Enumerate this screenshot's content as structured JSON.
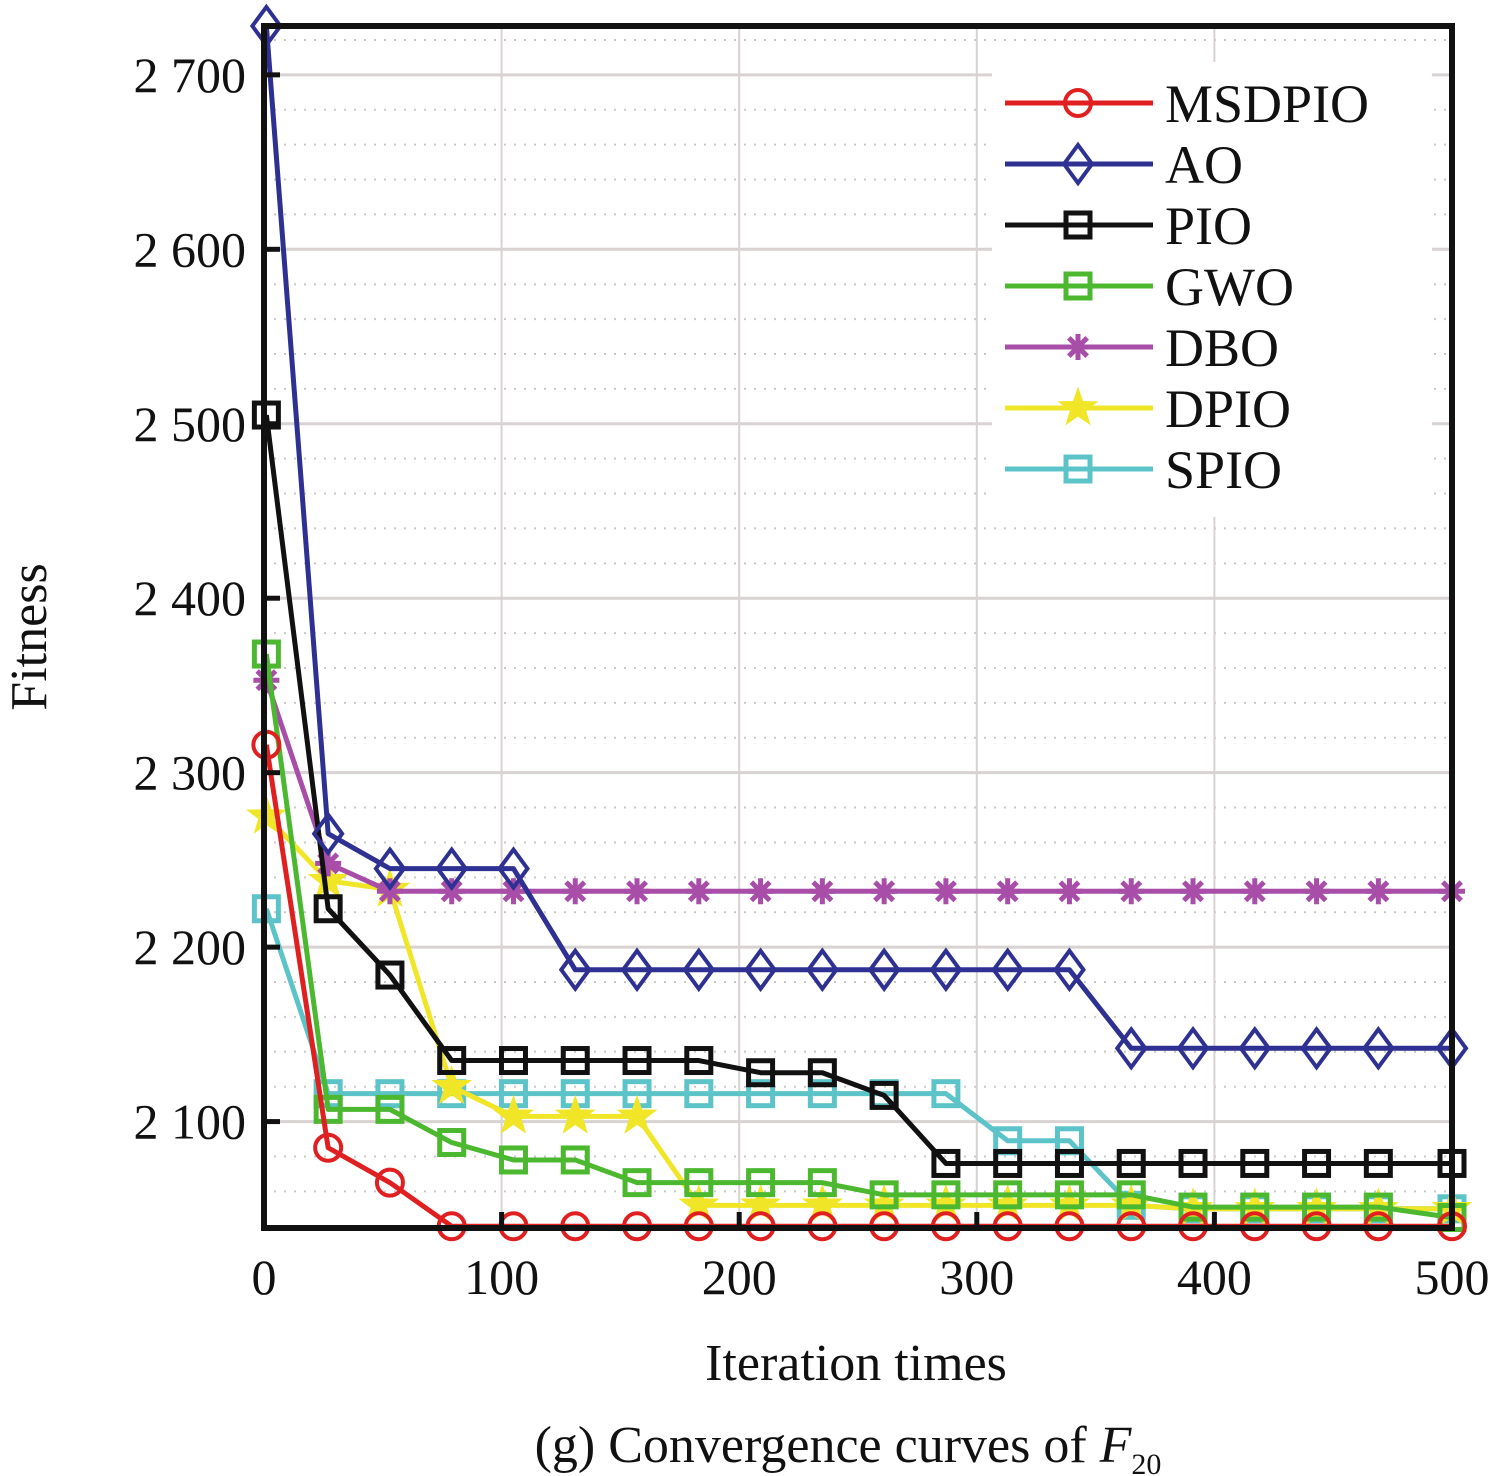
{
  "chart_data": {
    "type": "line",
    "title": "",
    "caption": {
      "prefix": "(g) Convergence curves of ",
      "italic": "F",
      "subscript": "20"
    },
    "xlabel": "Iteration times",
    "ylabel": "Fitness",
    "xlim": [
      0,
      500
    ],
    "ylim": [
      2039,
      2728
    ],
    "xticks": [
      0,
      100,
      200,
      300,
      400,
      500
    ],
    "xtick_labels": [
      "0",
      "100",
      "200",
      "300",
      "400",
      "500"
    ],
    "yticks": [
      2100,
      2200,
      2300,
      2400,
      2500,
      2600,
      2700
    ],
    "ytick_labels": [
      "2 100",
      "2 200",
      "2 300",
      "2 400",
      "2 500",
      "2 600",
      "2 700"
    ],
    "grid": true,
    "legend_position": "top-right",
    "x": [
      1,
      27,
      53,
      79,
      105,
      131,
      157,
      183,
      209,
      235,
      261,
      287,
      313,
      339,
      365,
      391,
      417,
      443,
      469,
      500
    ],
    "series": [
      {
        "name": "MSDPIO",
        "color": "#e02020",
        "marker": "circle",
        "values": [
          2316,
          2085,
          2065,
          2040,
          2040,
          2040,
          2040,
          2040,
          2040,
          2040,
          2040,
          2040,
          2040,
          2040,
          2040,
          2040,
          2040,
          2040,
          2040,
          2040
        ]
      },
      {
        "name": "AO",
        "color": "#2e3192",
        "marker": "diamond",
        "values": [
          2728,
          2265,
          2245,
          2245,
          2245,
          2187,
          2187,
          2187,
          2187,
          2187,
          2187,
          2187,
          2187,
          2187,
          2142,
          2142,
          2142,
          2142,
          2142,
          2142
        ]
      },
      {
        "name": "PIO",
        "color": "#111111",
        "marker": "square",
        "values": [
          2505,
          2222,
          2184,
          2135,
          2135,
          2135,
          2135,
          2135,
          2128,
          2128,
          2115,
          2076,
          2076,
          2076,
          2076,
          2076,
          2076,
          2076,
          2076,
          2076
        ]
      },
      {
        "name": "GWO",
        "color": "#4cb830",
        "marker": "square",
        "values": [
          2368,
          2107,
          2107,
          2088,
          2078,
          2078,
          2065,
          2065,
          2065,
          2065,
          2058,
          2058,
          2058,
          2058,
          2058,
          2051,
          2051,
          2051,
          2051,
          2045
        ]
      },
      {
        "name": "DBO",
        "color": "#a84ea8",
        "marker": "asterisk",
        "values": [
          2353,
          2248,
          2232,
          2232,
          2232,
          2232,
          2232,
          2232,
          2232,
          2232,
          2232,
          2232,
          2232,
          2232,
          2232,
          2232,
          2232,
          2232,
          2232,
          2232
        ]
      },
      {
        "name": "DPIO",
        "color": "#f0e627",
        "marker": "star",
        "values": [
          2275,
          2238,
          2233,
          2120,
          2103,
          2103,
          2103,
          2052,
          2052,
          2052,
          2052,
          2052,
          2052,
          2052,
          2052,
          2050,
          2050,
          2050,
          2050,
          2050
        ]
      },
      {
        "name": "SPIO",
        "color": "#5cc4c8",
        "marker": "square",
        "values": [
          2222,
          2116,
          2116,
          2116,
          2116,
          2116,
          2116,
          2116,
          2116,
          2116,
          2116,
          2116,
          2089,
          2089,
          2052,
          2050,
          2050,
          2050,
          2050,
          2050
        ]
      }
    ]
  }
}
